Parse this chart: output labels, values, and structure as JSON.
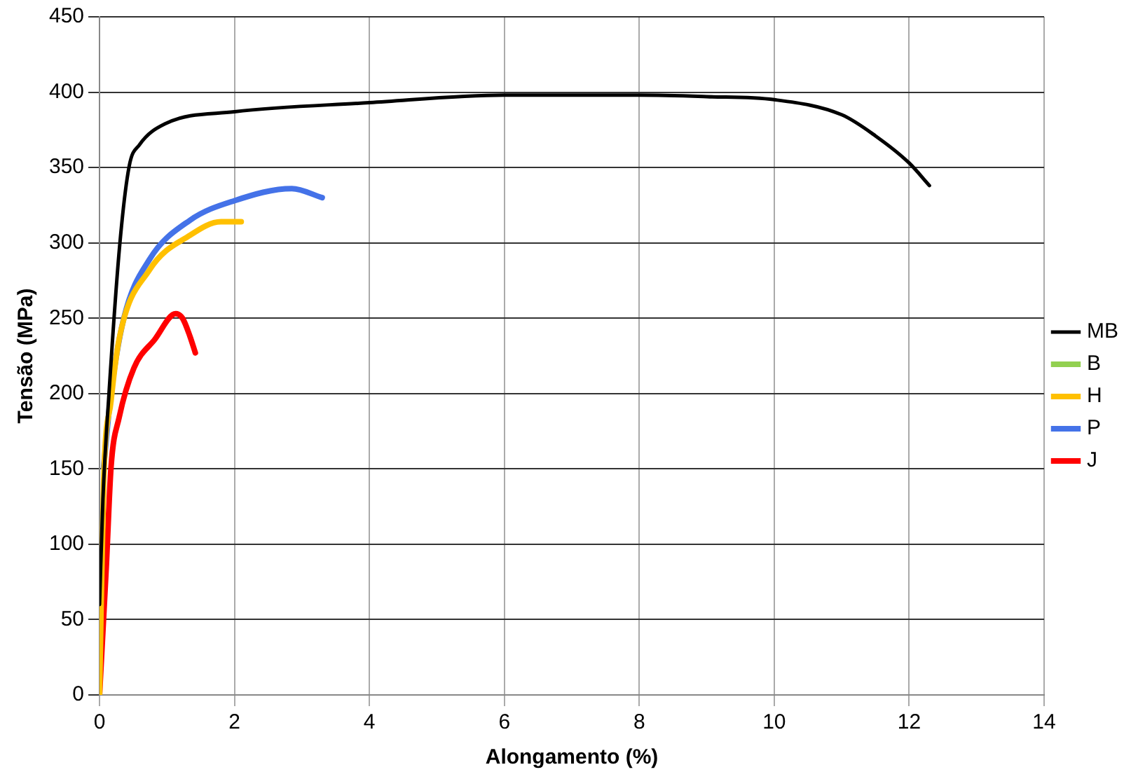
{
  "chart_data": {
    "type": "line",
    "xlabel": "Alongamento (%)",
    "ylabel": "Tensão (MPa)",
    "xlim": [
      0,
      14
    ],
    "xticks": [
      0,
      2,
      4,
      6,
      8,
      10,
      12,
      14
    ],
    "ylim": [
      0,
      450
    ],
    "yticks": [
      0,
      50,
      100,
      150,
      200,
      250,
      300,
      350,
      400,
      450
    ],
    "grid": true,
    "legend": "right",
    "marker": "none",
    "series": [
      {
        "name": "MB",
        "color": "#000000",
        "x": [
          0,
          0.05,
          0.14,
          0.3,
          0.44,
          0.59,
          0.97,
          2,
          4,
          6,
          8,
          9,
          10,
          11,
          11.5,
          12,
          12.3
        ],
        "values": [
          60,
          130,
          200,
          299,
          351,
          365,
          379,
          387,
          393,
          398,
          398,
          397,
          395,
          385,
          371,
          353,
          338
        ]
      },
      {
        "name": "B",
        "color": "#92d050"
      },
      {
        "name": "H",
        "color": "#ffc000",
        "x": [
          0,
          0.06,
          0.17,
          0.29,
          0.74,
          1.34,
          1.8,
          2.1
        ],
        "values": [
          0,
          140,
          195,
          236,
          282,
          305,
          314,
          314
        ]
      },
      {
        "name": "P",
        "color": "#4472e8",
        "x": [
          0.06,
          0.17,
          0.36,
          0.74,
          1.34,
          2,
          2.85,
          3.3
        ],
        "values": [
          151,
          200,
          250,
          289,
          315,
          328,
          336,
          330
        ]
      },
      {
        "name": "J",
        "color": "#ff0000",
        "x": [
          0,
          0.1,
          0.17,
          0.29,
          0.51,
          0.82,
          1.13,
          1.23,
          1.34,
          1.42
        ],
        "values": [
          0,
          85,
          151,
          184,
          217,
          236,
          253,
          250,
          238,
          227
        ]
      }
    ]
  }
}
